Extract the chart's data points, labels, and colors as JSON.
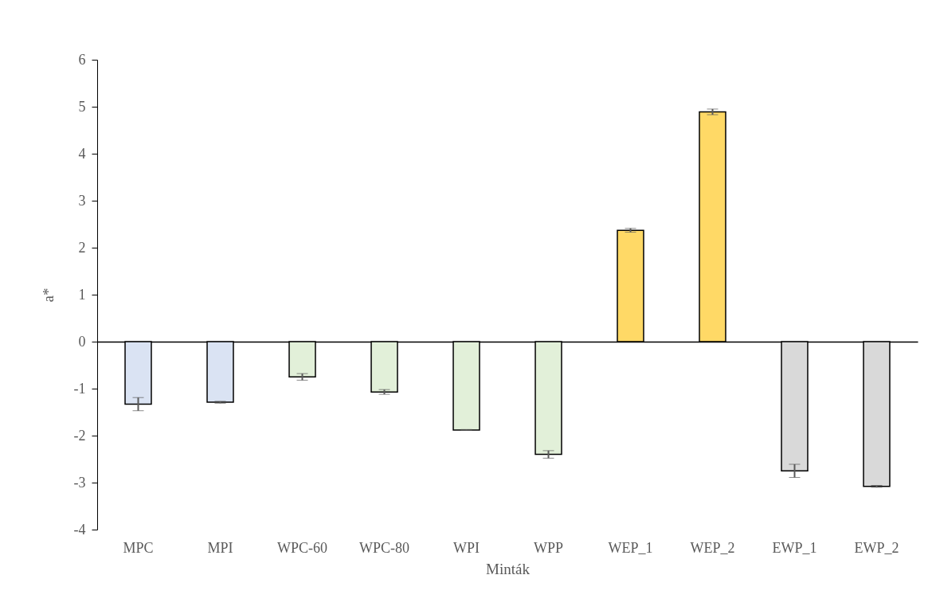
{
  "chart_data": {
    "type": "bar",
    "xlabel": "Minták",
    "ylabel": "a*",
    "categories": [
      "MPC",
      "MPI",
      "WPC-60",
      "WPC-80",
      "WPI",
      "WPP",
      "WEP_1",
      "WEP_2",
      "EWP_1",
      "EWP_2"
    ],
    "values": [
      -1.33,
      -1.29,
      -0.75,
      -1.07,
      -1.88,
      -2.4,
      2.37,
      4.89,
      -2.75,
      -3.08
    ],
    "errors": [
      0.14,
      0.02,
      0.07,
      0.05,
      0.01,
      0.08,
      0.04,
      0.06,
      0.14,
      0.02
    ],
    "colors": [
      "#dae3f3",
      "#dae3f3",
      "#e2f0d9",
      "#e2f0d9",
      "#e2f0d9",
      "#e2f0d9",
      "#ffd966",
      "#ffd966",
      "#d9d9d9",
      "#d9d9d9"
    ],
    "ylim": [
      -4,
      6
    ],
    "yticks": [
      -4,
      -3,
      -2,
      -1,
      0,
      1,
      2,
      3,
      4,
      5,
      6
    ]
  }
}
